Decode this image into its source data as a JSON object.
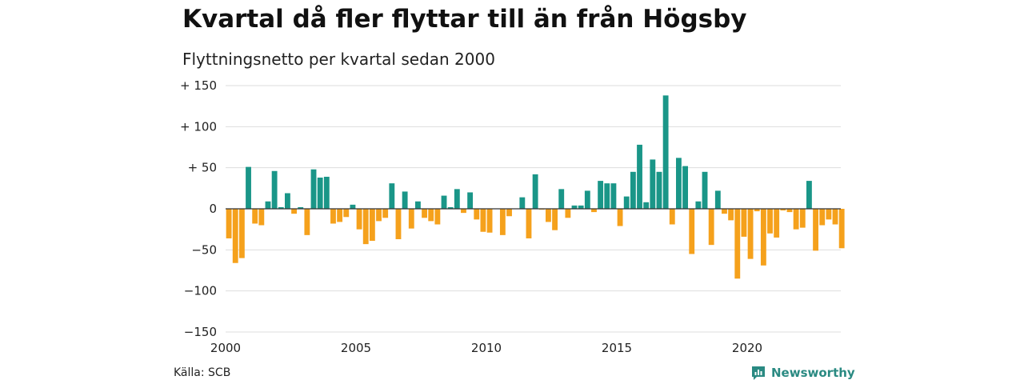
{
  "title": "Kvartal då fler flyttar till än från Högsby",
  "subtitle": "Flyttningsnetto per kvartal sedan 2000",
  "source": "Källa: SCB",
  "brand": "Newsworthy",
  "colors": {
    "positive": "#1a9688",
    "negative": "#f5a11c",
    "grid": "#dddddd",
    "zero": "#333333",
    "brand": "#2a8a82"
  },
  "chart_data": {
    "type": "bar",
    "x_start": 2000,
    "periods_per_year": 4,
    "ylim": [
      -150,
      150
    ],
    "grid": true,
    "y_ticks": [
      {
        "value": 150,
        "label": "+ 150"
      },
      {
        "value": 100,
        "label": "+ 100"
      },
      {
        "value": 50,
        "label": "+  50"
      },
      {
        "value": 0,
        "label": "0"
      },
      {
        "value": -50,
        "label": "−50"
      },
      {
        "value": -100,
        "label": "−100"
      },
      {
        "value": -150,
        "label": "−150"
      }
    ],
    "x_ticks": [
      {
        "value": 2000,
        "label": "2000"
      },
      {
        "value": 2005,
        "label": "2005"
      },
      {
        "value": 2010,
        "label": "2010"
      },
      {
        "value": 2015,
        "label": "2015"
      },
      {
        "value": 2020,
        "label": "2020"
      }
    ],
    "values": [
      -36,
      -66,
      -60,
      51,
      -18,
      -20,
      9,
      46,
      2,
      19,
      -6,
      2,
      -32,
      48,
      38,
      39,
      -18,
      -16,
      -10,
      5,
      -25,
      -43,
      -39,
      -15,
      -11,
      31,
      -37,
      21,
      -24,
      9,
      -11,
      -15,
      -19,
      16,
      2,
      24,
      -5,
      20,
      -13,
      -28,
      -29,
      0,
      -32,
      -9,
      0,
      14,
      -36,
      42,
      -1,
      -16,
      -26,
      24,
      -11,
      4,
      4,
      22,
      -4,
      34,
      31,
      31,
      -21,
      15,
      45,
      78,
      8,
      60,
      45,
      138,
      -19,
      62,
      52,
      -55,
      9,
      45,
      -44,
      22,
      -6,
      -14,
      -85,
      -34,
      -61,
      -3,
      -69,
      -30,
      -35,
      -2,
      -4,
      -25,
      -23,
      34,
      -51,
      -20,
      -13,
      -19,
      -48
    ]
  }
}
